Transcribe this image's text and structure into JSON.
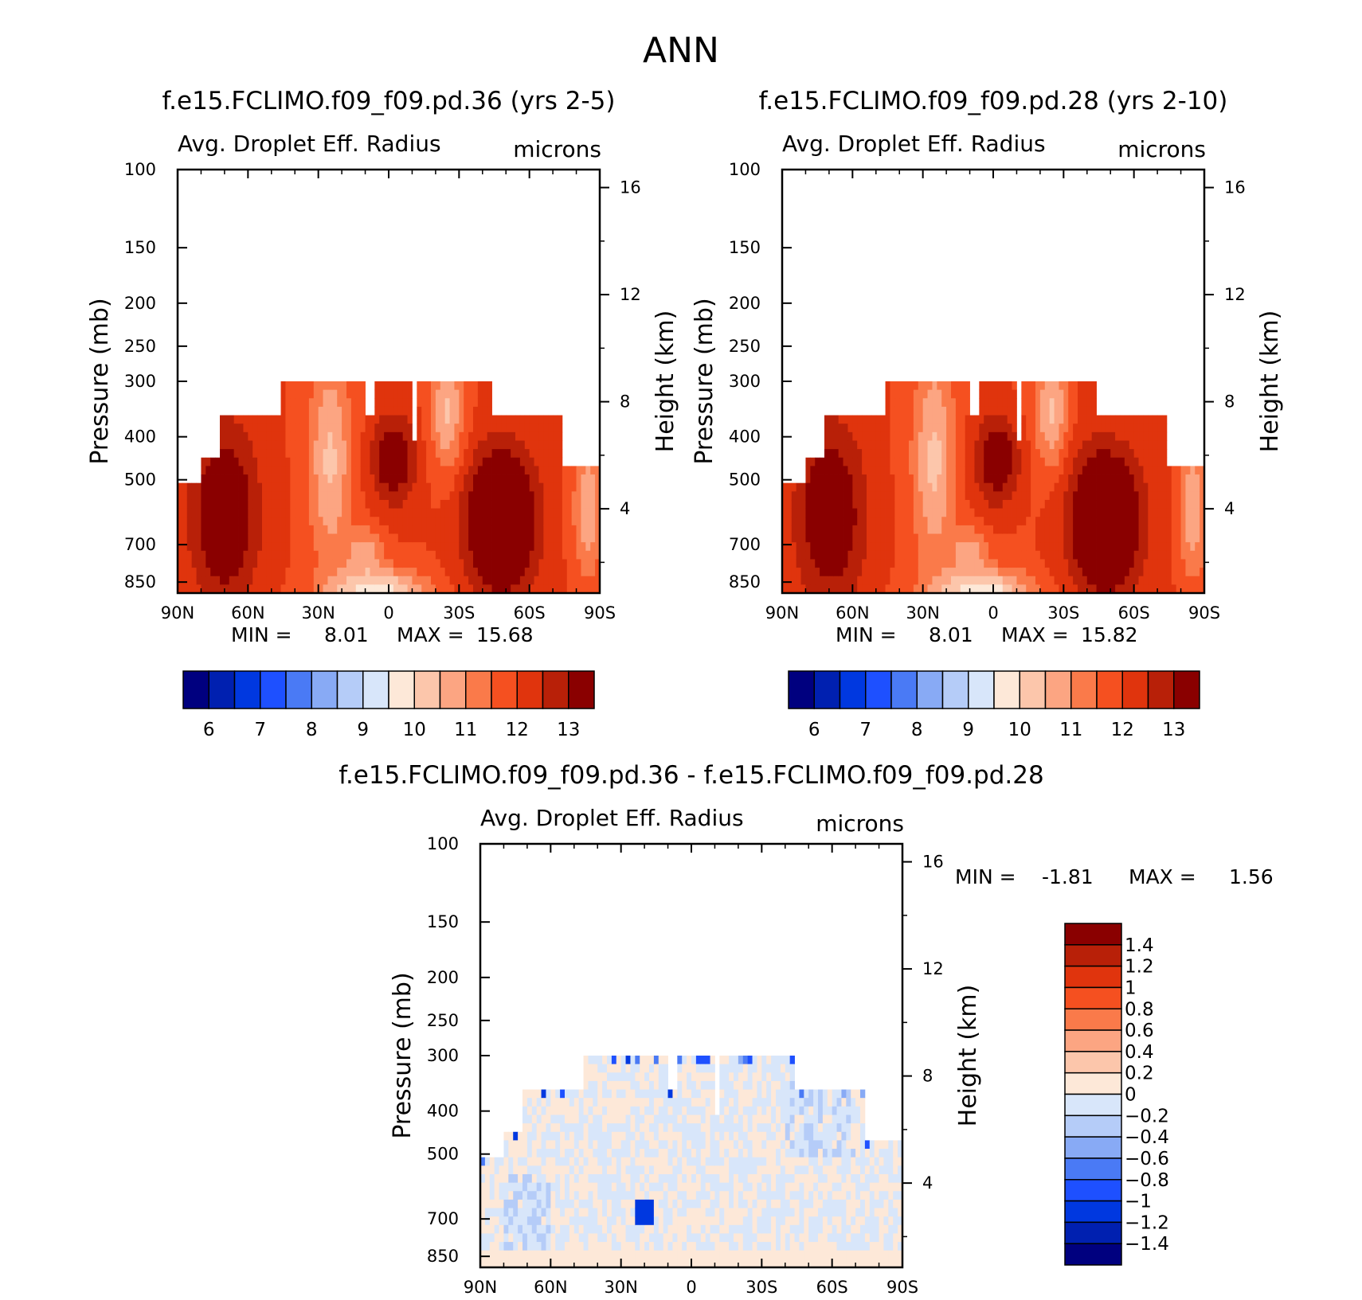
{
  "page_title": "ANN",
  "chart_data": [
    {
      "type": "heatmap",
      "title": "f.e15.FCLIMO.f09_f09.pd.36 (yrs 2-5)",
      "variable_label": "Avg. Droplet Eff. Radius",
      "units_label": "microns",
      "ylabel": "Pressure (mb)",
      "y2label": "Height (km)",
      "x_ticks": [
        "90N",
        "60N",
        "30N",
        "0",
        "30S",
        "60S",
        "90S"
      ],
      "y_ticks": [
        "100",
        "150",
        "200",
        "250",
        "300",
        "400",
        "500",
        "700",
        "850"
      ],
      "y2_ticks": [
        "16",
        "12",
        "8",
        "4"
      ],
      "ylim_mb": [
        100,
        900
      ],
      "min_label": "MIN =",
      "min_value": "8.01",
      "max_label": "MAX =",
      "max_value": "15.68",
      "colorbar_levels": [
        6,
        7,
        8,
        9,
        10,
        11,
        12,
        13
      ],
      "colorbar_ticks": [
        "6",
        "7",
        "8",
        "9",
        "10",
        "11",
        "12",
        "13"
      ],
      "colors": [
        "#00007f",
        "#0020b0",
        "#0038e0",
        "#1e50ff",
        "#4a7af5",
        "#88aaf5",
        "#b5ccf8",
        "#d8e6fa",
        "#fde8d8",
        "#fcc6ab",
        "#fca582",
        "#fa7a4a",
        "#f55020",
        "#e0340d",
        "#b82008",
        "#8a0000"
      ]
    },
    {
      "type": "heatmap",
      "title": "f.e15.FCLIMO.f09_f09.pd.28 (yrs 2-10)",
      "variable_label": "Avg. Droplet Eff. Radius",
      "units_label": "microns",
      "ylabel": "Pressure (mb)",
      "y2label": "Height (km)",
      "x_ticks": [
        "90N",
        "60N",
        "30N",
        "0",
        "30S",
        "60S",
        "90S"
      ],
      "y_ticks": [
        "100",
        "150",
        "200",
        "250",
        "300",
        "400",
        "500",
        "700",
        "850"
      ],
      "y2_ticks": [
        "16",
        "12",
        "8",
        "4"
      ],
      "ylim_mb": [
        100,
        900
      ],
      "min_label": "MIN =",
      "min_value": "8.01",
      "max_label": "MAX =",
      "max_value": "15.82",
      "colorbar_levels": [
        6,
        7,
        8,
        9,
        10,
        11,
        12,
        13
      ],
      "colorbar_ticks": [
        "6",
        "7",
        "8",
        "9",
        "10",
        "11",
        "12",
        "13"
      ],
      "colors": [
        "#00007f",
        "#0020b0",
        "#0038e0",
        "#1e50ff",
        "#4a7af5",
        "#88aaf5",
        "#b5ccf8",
        "#d8e6fa",
        "#fde8d8",
        "#fcc6ab",
        "#fca582",
        "#fa7a4a",
        "#f55020",
        "#e0340d",
        "#b82008",
        "#8a0000"
      ]
    },
    {
      "type": "heatmap",
      "title": "f.e15.FCLIMO.f09_f09.pd.36 - f.e15.FCLIMO.f09_f09.pd.28",
      "variable_label": "Avg. Droplet Eff. Radius",
      "units_label": "microns",
      "ylabel": "Pressure (mb)",
      "y2label": "Height (km)",
      "x_ticks": [
        "90N",
        "60N",
        "30N",
        "0",
        "30S",
        "60S",
        "90S"
      ],
      "y_ticks": [
        "100",
        "150",
        "200",
        "250",
        "300",
        "400",
        "500",
        "700",
        "850"
      ],
      "y2_ticks": [
        "16",
        "12",
        "8",
        "4"
      ],
      "ylim_mb": [
        100,
        900
      ],
      "min_label": "MIN =",
      "min_value": "-1.81",
      "max_label": "MAX =",
      "max_value": "1.56",
      "colorbar_levels": [
        1.4,
        1.2,
        1,
        0.8,
        0.6,
        0.4,
        0.2,
        0,
        -0.2,
        -0.4,
        -0.6,
        -0.8,
        -1,
        -1.2,
        -1.4
      ],
      "colorbar_ticks": [
        "1.4",
        "1.2",
        "1",
        "0.8",
        "0.6",
        "0.4",
        "0.2",
        "0",
        "−0.2",
        "−0.4",
        "−0.6",
        "−0.8",
        "−1",
        "−1.2",
        "−1.4"
      ],
      "colors": [
        "#8a0000",
        "#b82008",
        "#e0340d",
        "#f55020",
        "#fa7a4a",
        "#fca582",
        "#fcc6ab",
        "#fde8d8",
        "#d8e6fa",
        "#b5ccf8",
        "#88aaf5",
        "#4a7af5",
        "#1e50ff",
        "#0038e0",
        "#0020b0",
        "#00007f"
      ]
    }
  ]
}
